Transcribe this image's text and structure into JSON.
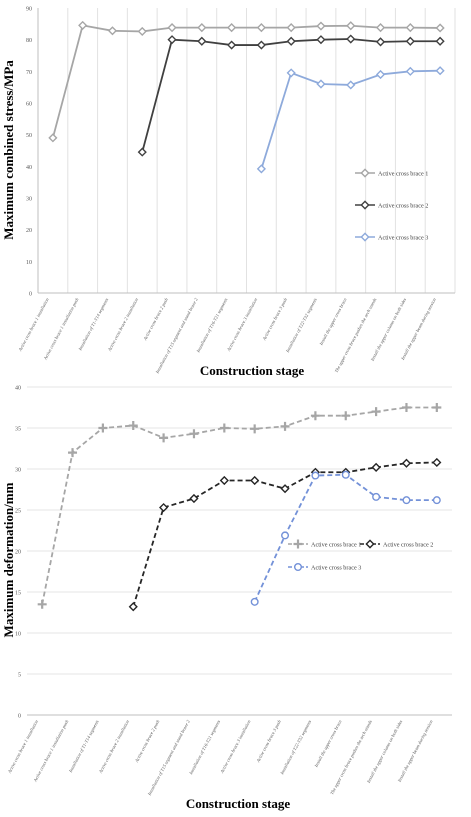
{
  "stages": [
    "Active cross brace 1 installation",
    "Active cross brace 1 installation push",
    "Installation of T1-T14 segments",
    "Active cross brace 2 installation",
    "Active cross brace 2 push",
    "Installation of T15 segment and stand brace 2",
    "Installation of T16-T21 segments",
    "Active cross brace 3 installation",
    "Active cross brace 3 push",
    "Installation of T22-T32 segments",
    "Install the upper cross brace",
    "The upper cross brace pushes the arch stands",
    "Install the upper column on both sides",
    "Install the upper beam during tension"
  ],
  "chart_data": [
    {
      "type": "line",
      "xlabel": "Construction stage",
      "ylabel": "Maximum combined stress/MPa",
      "ylim": [
        0,
        90
      ],
      "yticks": [
        0,
        10,
        20,
        30,
        40,
        50,
        60,
        70,
        80,
        90
      ],
      "grid": "vertical",
      "legend_position": "right",
      "series": [
        {
          "name": "Active cross brace 1",
          "color": "#a6a6a6",
          "marker": "diamond",
          "dashed": false,
          "values": [
            49,
            84.5,
            82.8,
            82.6,
            83.8,
            83.8,
            83.8,
            83.8,
            83.8,
            84.3,
            84.4,
            83.8,
            83.8,
            83.7
          ]
        },
        {
          "name": "Active cross brace 2",
          "color": "#404040",
          "marker": "diamond",
          "dashed": false,
          "values": [
            null,
            null,
            null,
            44.5,
            80,
            79.5,
            78.3,
            78.3,
            79.5,
            80,
            80.2,
            79.3,
            79.5,
            79.5
          ]
        },
        {
          "name": "Active cross brace 3",
          "color": "#8eaadb",
          "marker": "diamond",
          "dashed": false,
          "values": [
            null,
            null,
            null,
            null,
            null,
            null,
            null,
            39.2,
            69.5,
            66,
            65.7,
            69,
            70,
            70.2
          ]
        }
      ]
    },
    {
      "type": "line",
      "xlabel": "Construction stage",
      "ylabel": "Maximum deformation/mm",
      "ylim": [
        0,
        40
      ],
      "yticks": [
        0,
        5,
        10,
        15,
        20,
        25,
        30,
        35,
        40
      ],
      "grid": "horizontal",
      "legend_position": "right",
      "series": [
        {
          "name": "Active cross brace 1",
          "color": "#a6a6a6",
          "marker": "plus",
          "dashed": true,
          "values": [
            13.5,
            32,
            35,
            35.3,
            33.8,
            34.3,
            35,
            34.9,
            35.2,
            36.5,
            36.5,
            37,
            37.5,
            37.5
          ]
        },
        {
          "name": "Active cross brace 2",
          "color": "#262626",
          "marker": "diamond",
          "dashed": true,
          "values": [
            null,
            null,
            null,
            13.2,
            25.3,
            26.4,
            28.6,
            28.6,
            27.6,
            29.6,
            29.6,
            30.2,
            30.7,
            30.8
          ]
        },
        {
          "name": "Active cross brace 3",
          "color": "#7391d8",
          "marker": "circle",
          "dashed": true,
          "values": [
            null,
            null,
            null,
            null,
            null,
            null,
            null,
            13.8,
            21.9,
            29.2,
            29.3,
            26.6,
            26.2,
            26.2
          ]
        }
      ]
    }
  ]
}
